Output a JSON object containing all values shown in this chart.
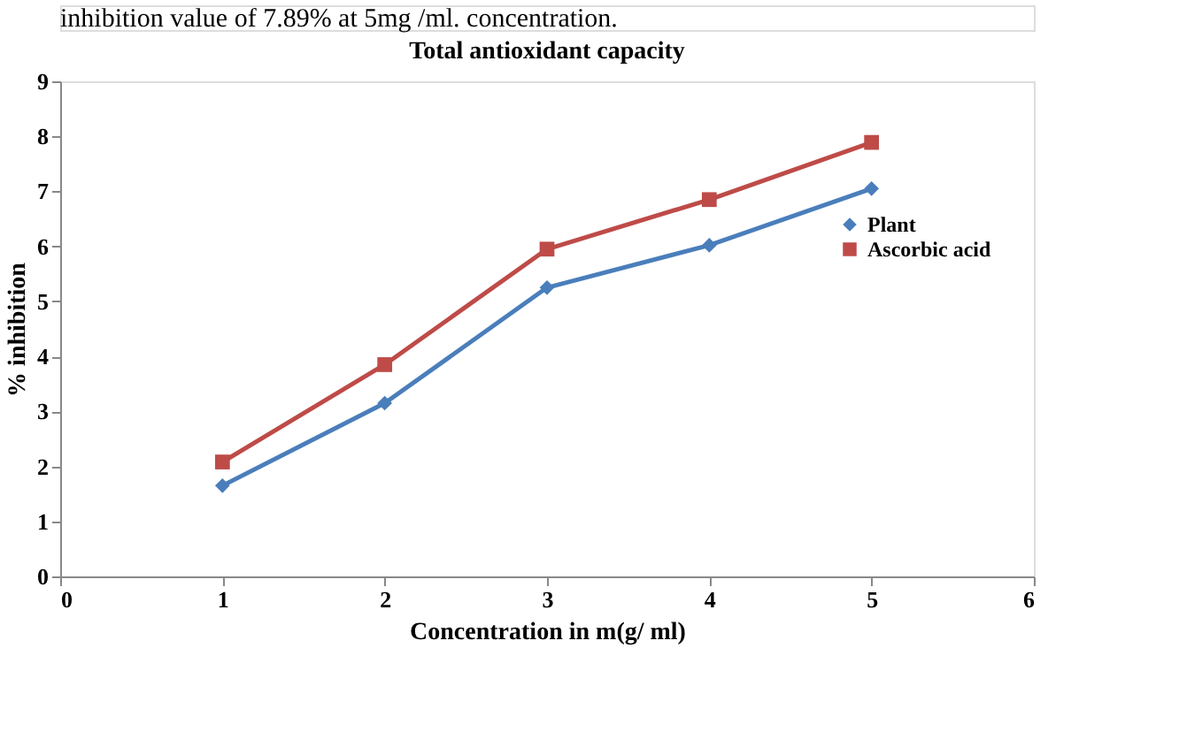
{
  "chart_data": {
    "type": "line",
    "title": "Total antioxidant capacity",
    "xlabel": "Concentration in m(g/ ml)",
    "ylabel": "% inhibition",
    "annotations": [
      "inhibition value of 7.89% at 5mg /ml. concentration."
    ],
    "x": [
      1,
      2,
      3,
      4,
      5
    ],
    "series": [
      {
        "name": "Plant",
        "color": "#4a7ebb",
        "marker": "diamond",
        "values": [
          1.65,
          3.15,
          5.25,
          6.02,
          7.05
        ]
      },
      {
        "name": "Ascorbic acid",
        "color": "#be4b48",
        "marker": "square",
        "values": [
          2.08,
          3.85,
          5.95,
          6.85,
          7.89
        ]
      }
    ],
    "xlim": [
      0,
      6
    ],
    "xticks": [
      0,
      1,
      2,
      3,
      4,
      5,
      6
    ],
    "ylim": [
      0,
      9
    ],
    "yticks": [
      0,
      1,
      2,
      3,
      4,
      5,
      6,
      7,
      8,
      9
    ],
    "grid": false,
    "legend": "right",
    "line_style": "solid"
  }
}
